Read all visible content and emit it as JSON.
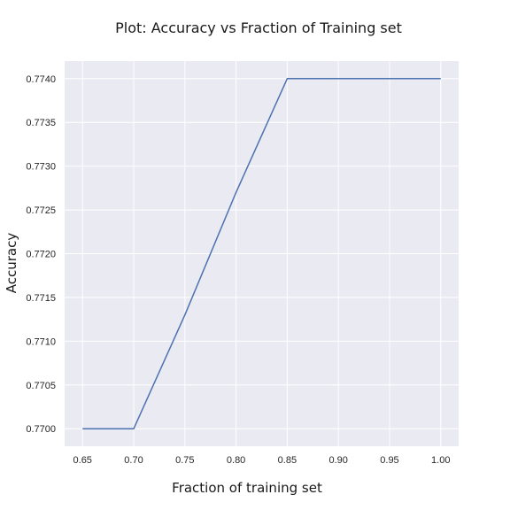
{
  "chart_data": {
    "type": "line",
    "title": "Plot: Accuracy vs Fraction of Training set",
    "xlabel": "Fraction of training set",
    "ylabel": "Accuracy",
    "x": [
      0.65,
      0.7,
      0.75,
      0.8,
      0.85,
      0.9,
      0.95,
      1.0
    ],
    "series": [
      {
        "values": [
          0.77,
          0.77,
          0.7713,
          0.7727,
          0.774,
          0.774,
          0.774,
          0.774
        ]
      }
    ],
    "xticks": [
      "0.65",
      "0.70",
      "0.75",
      "0.80",
      "0.85",
      "0.90",
      "0.95",
      "1.00"
    ],
    "yticks": [
      "0.7700",
      "0.7705",
      "0.7710",
      "0.7715",
      "0.7720",
      "0.7725",
      "0.7730",
      "0.7735",
      "0.7740"
    ],
    "xlim": [
      0.6325,
      1.0175
    ],
    "ylim": [
      0.7698,
      0.7742
    ],
    "grid": true,
    "colors": {
      "background": "#eaeaf2",
      "line": "#4c72b0",
      "grid": "#ffffff"
    }
  }
}
